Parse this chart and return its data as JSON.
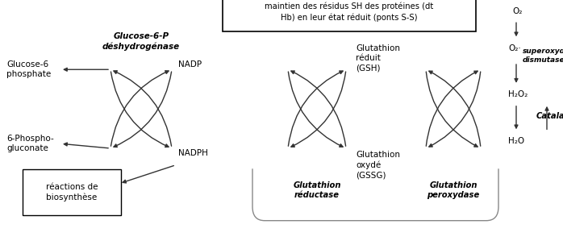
{
  "box_top_text": "maintien des résidus SH des protéines (dt\nHb) en leur état réduit (ponts S-S)",
  "box_bottom_text": "réactions de\nbiosynthèse",
  "enzyme1": "Glucose-6-P\ndéshydrogénase",
  "substrate_top_left": "Glucose-6\nphosphate",
  "substrate_bottom_left": "6-Phospho-\ngluconate",
  "nadp": "NADP",
  "nadph": "NADPH",
  "glutathion_reductase": "Glutathion\nréductase",
  "glutathion_reduit": "Glutathion\nréduit\n(GSH)",
  "glutathion_oxyde": "Glutathion\noxydé\n(GSSG)",
  "glutathion_peroxydase": "Glutathion\nperoxydase",
  "o2": "O₂",
  "o2_dot": "O₂·",
  "superoxyde_dismutase": "superoxyde\ndismutase",
  "h2o2": "H₂O₂",
  "catalase": "Catalase",
  "h2o": "H₂O",
  "col": "#333333",
  "light_col": "#888888"
}
